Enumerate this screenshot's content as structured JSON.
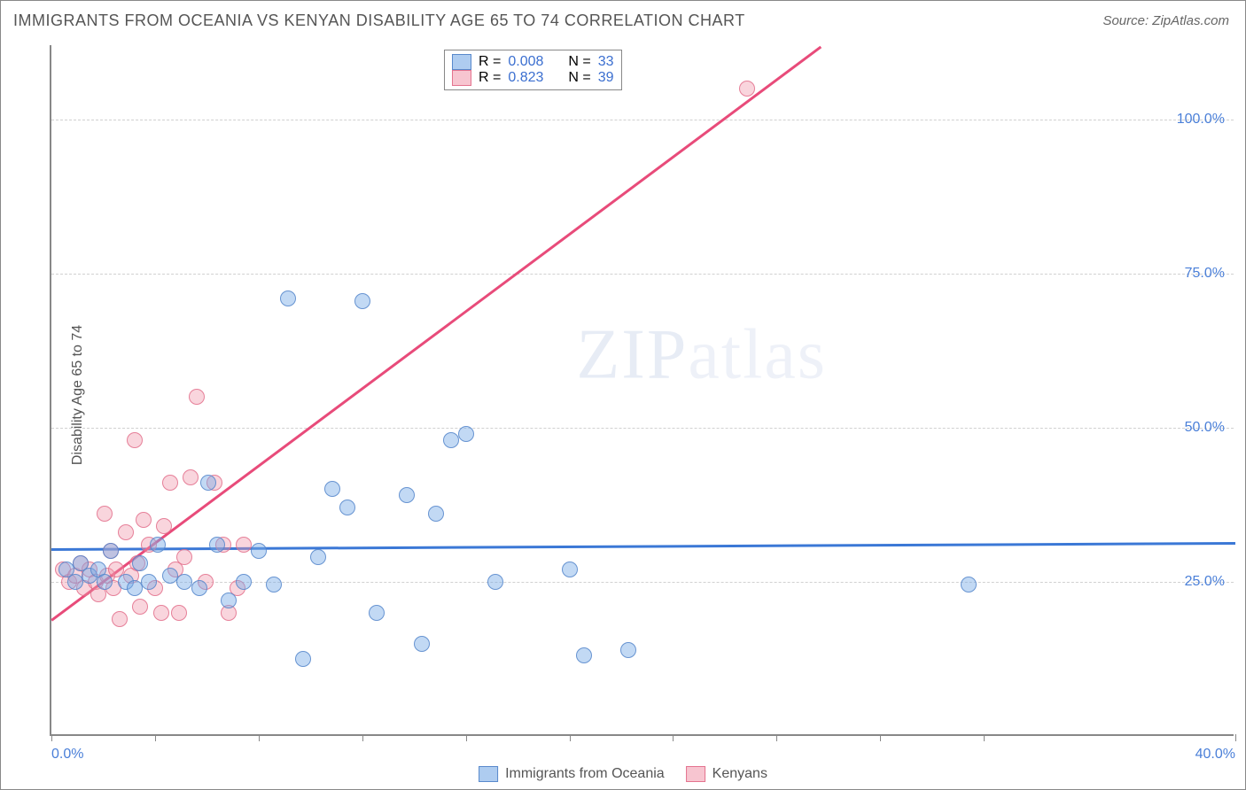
{
  "title": "IMMIGRANTS FROM OCEANIA VS KENYAN DISABILITY AGE 65 TO 74 CORRELATION CHART",
  "source": "Source: ZipAtlas.com",
  "y_axis_label": "Disability Age 65 to 74",
  "watermark_a": "ZIP",
  "watermark_b": "atlas",
  "chart": {
    "type": "scatter",
    "xlim": [
      0,
      40
    ],
    "ylim": [
      0,
      112
    ],
    "x_ticks": [
      0,
      3.5,
      7,
      10.5,
      14,
      17.5,
      21,
      24.5,
      28,
      31.5,
      40
    ],
    "x_tick_labels": {
      "0": "0.0%",
      "40": "40.0%"
    },
    "y_gridlines": [
      25,
      50,
      75,
      100
    ],
    "y_tick_labels": {
      "25": "25.0%",
      "50": "50.0%",
      "75": "75.0%",
      "100": "100.0%"
    },
    "grid_color": "#d0d0d0",
    "background_color": "#ffffff",
    "series": [
      {
        "name": "Immigrants from Oceania",
        "color_fill": "rgba(120,170,230,0.45)",
        "color_stroke": "rgba(80,130,200,0.8)",
        "marker_size": 18,
        "R": "0.008",
        "N": "33",
        "trend": {
          "x1": 0,
          "y1": 30.5,
          "x2": 40,
          "y2": 31.5,
          "color": "#3b78d6"
        },
        "points": [
          [
            0.5,
            27
          ],
          [
            0.8,
            25
          ],
          [
            1.0,
            28
          ],
          [
            1.3,
            26
          ],
          [
            1.6,
            27
          ],
          [
            1.8,
            25
          ],
          [
            2.0,
            30
          ],
          [
            2.5,
            25
          ],
          [
            2.8,
            24
          ],
          [
            3.0,
            28
          ],
          [
            3.3,
            25
          ],
          [
            3.6,
            31
          ],
          [
            4.0,
            26
          ],
          [
            4.5,
            25
          ],
          [
            5.0,
            24
          ],
          [
            5.3,
            41
          ],
          [
            5.6,
            31
          ],
          [
            6.0,
            22
          ],
          [
            6.5,
            25
          ],
          [
            7.0,
            30
          ],
          [
            7.5,
            24.5
          ],
          [
            8.0,
            71
          ],
          [
            8.5,
            12.5
          ],
          [
            9.0,
            29
          ],
          [
            9.5,
            40
          ],
          [
            10.0,
            37
          ],
          [
            10.5,
            70.5
          ],
          [
            11.0,
            20
          ],
          [
            12.0,
            39
          ],
          [
            12.5,
            15
          ],
          [
            13.0,
            36
          ],
          [
            13.5,
            48
          ],
          [
            14.0,
            49
          ],
          [
            15.0,
            25
          ],
          [
            17.5,
            27
          ],
          [
            18.0,
            13
          ],
          [
            19.5,
            14
          ],
          [
            31.0,
            24.5
          ]
        ]
      },
      {
        "name": "Kenyans",
        "color_fill": "rgba(240,150,170,0.4)",
        "color_stroke": "rgba(225,105,135,0.8)",
        "marker_size": 18,
        "R": "0.823",
        "N": "39",
        "trend": {
          "x1": 0,
          "y1": 19,
          "x2": 26,
          "y2": 112,
          "color": "#e84b7a"
        },
        "points": [
          [
            0.4,
            27
          ],
          [
            0.6,
            25
          ],
          [
            0.8,
            26
          ],
          [
            1.0,
            28
          ],
          [
            1.1,
            24
          ],
          [
            1.3,
            27
          ],
          [
            1.5,
            25
          ],
          [
            1.6,
            23
          ],
          [
            1.8,
            36
          ],
          [
            1.9,
            26
          ],
          [
            2.0,
            30
          ],
          [
            2.1,
            24
          ],
          [
            2.2,
            27
          ],
          [
            2.3,
            19
          ],
          [
            2.5,
            33
          ],
          [
            2.7,
            26
          ],
          [
            2.8,
            48
          ],
          [
            2.9,
            28
          ],
          [
            3.0,
            21
          ],
          [
            3.1,
            35
          ],
          [
            3.3,
            31
          ],
          [
            3.5,
            24
          ],
          [
            3.7,
            20
          ],
          [
            3.8,
            34
          ],
          [
            4.0,
            41
          ],
          [
            4.2,
            27
          ],
          [
            4.3,
            20
          ],
          [
            4.5,
            29
          ],
          [
            4.7,
            42
          ],
          [
            4.9,
            55
          ],
          [
            5.2,
            25
          ],
          [
            5.5,
            41
          ],
          [
            5.8,
            31
          ],
          [
            6.0,
            20
          ],
          [
            6.3,
            24
          ],
          [
            6.5,
            31
          ],
          [
            23.5,
            105
          ]
        ]
      }
    ]
  },
  "legend_top": {
    "rows": [
      {
        "swatch": "blue",
        "r_label": "R =",
        "r_value": "0.008",
        "n_label": "N =",
        "n_value": "33"
      },
      {
        "swatch": "pink",
        "r_label": "R =",
        "r_value": "0.823",
        "n_label": "N =",
        "n_value": "39"
      }
    ]
  },
  "legend_bottom": [
    {
      "swatch": "blue",
      "label": "Immigrants from Oceania"
    },
    {
      "swatch": "pink",
      "label": "Kenyans"
    }
  ]
}
